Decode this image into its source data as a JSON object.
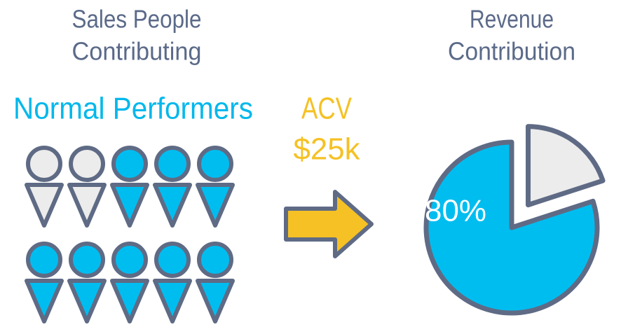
{
  "left": {
    "title_lines": [
      "Sales People",
      "Contributing"
    ],
    "group_label": "Normal Performers",
    "people": {
      "total": 10,
      "highlighted": 8
    }
  },
  "middle": {
    "lines": [
      "ACV",
      "$25k"
    ]
  },
  "right": {
    "title_lines": [
      "Revenue",
      "Contribution"
    ],
    "pie": {
      "value": 80,
      "value_label": "80%"
    }
  }
}
